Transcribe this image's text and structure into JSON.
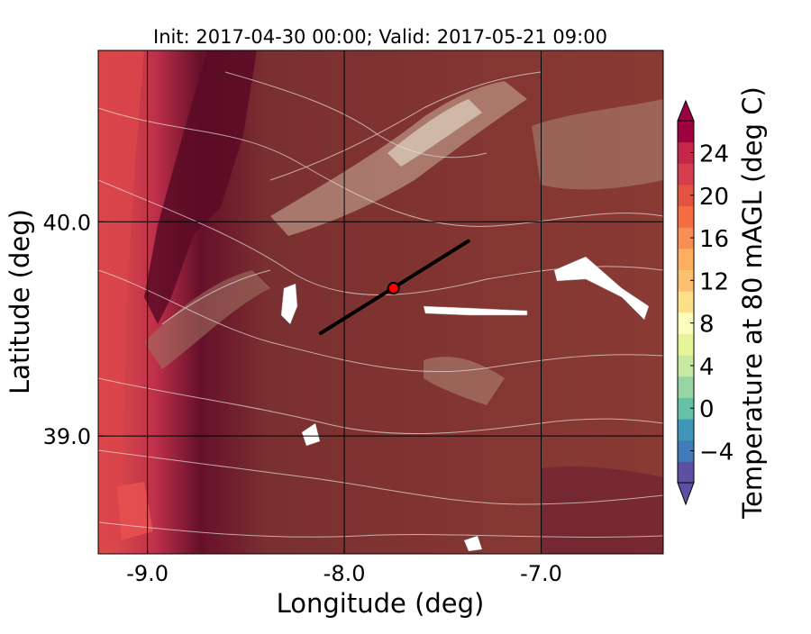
{
  "chart_data": {
    "type": "heatmap",
    "title": "Init: 2017-04-30 00:00; Valid: 2017-05-21 09:00",
    "xlabel": "Longitude (deg)",
    "ylabel": "Latitude (deg)",
    "xlim": [
      -9.25,
      -6.38
    ],
    "ylim": [
      38.45,
      40.8
    ],
    "x_ticks": [
      {
        "value": -9.0,
        "label": "-9.0"
      },
      {
        "value": -8.0,
        "label": "-8.0"
      },
      {
        "value": -7.0,
        "label": "-7.0"
      }
    ],
    "y_ticks": [
      {
        "value": 40.0,
        "label": "40.0"
      },
      {
        "value": 39.0,
        "label": "39.0"
      }
    ],
    "grid": true,
    "colorbar": {
      "label": "Temperature at 80 mAGL (deg C)",
      "min": -7,
      "max": 27,
      "extend": "both",
      "ticks": [
        {
          "value": 24,
          "label": "24"
        },
        {
          "value": 20,
          "label": "20"
        },
        {
          "value": 16,
          "label": "16"
        },
        {
          "value": 12,
          "label": "12"
        },
        {
          "value": 8,
          "label": "8"
        },
        {
          "value": 4,
          "label": "4"
        },
        {
          "value": 0,
          "label": "0"
        },
        {
          "value": -4,
          "label": "−4"
        }
      ],
      "colors": [
        "#5e4fa2",
        "#3f7cb9",
        "#3f96b7",
        "#66c2a5",
        "#99d5a4",
        "#c7e9a0",
        "#e6f598",
        "#fbfdbb",
        "#fee08b",
        "#fdc070",
        "#fdae61",
        "#f88e53",
        "#f46d43",
        "#e2543f",
        "#d53e4f",
        "#c42747",
        "#9e0142"
      ]
    },
    "cross_section": {
      "start": {
        "lon": -8.12,
        "lat": 39.48
      },
      "end": {
        "lon": -7.37,
        "lat": 39.91
      },
      "marker": {
        "lon": -7.75,
        "lat": 39.69,
        "color": "#ff0000"
      }
    }
  }
}
